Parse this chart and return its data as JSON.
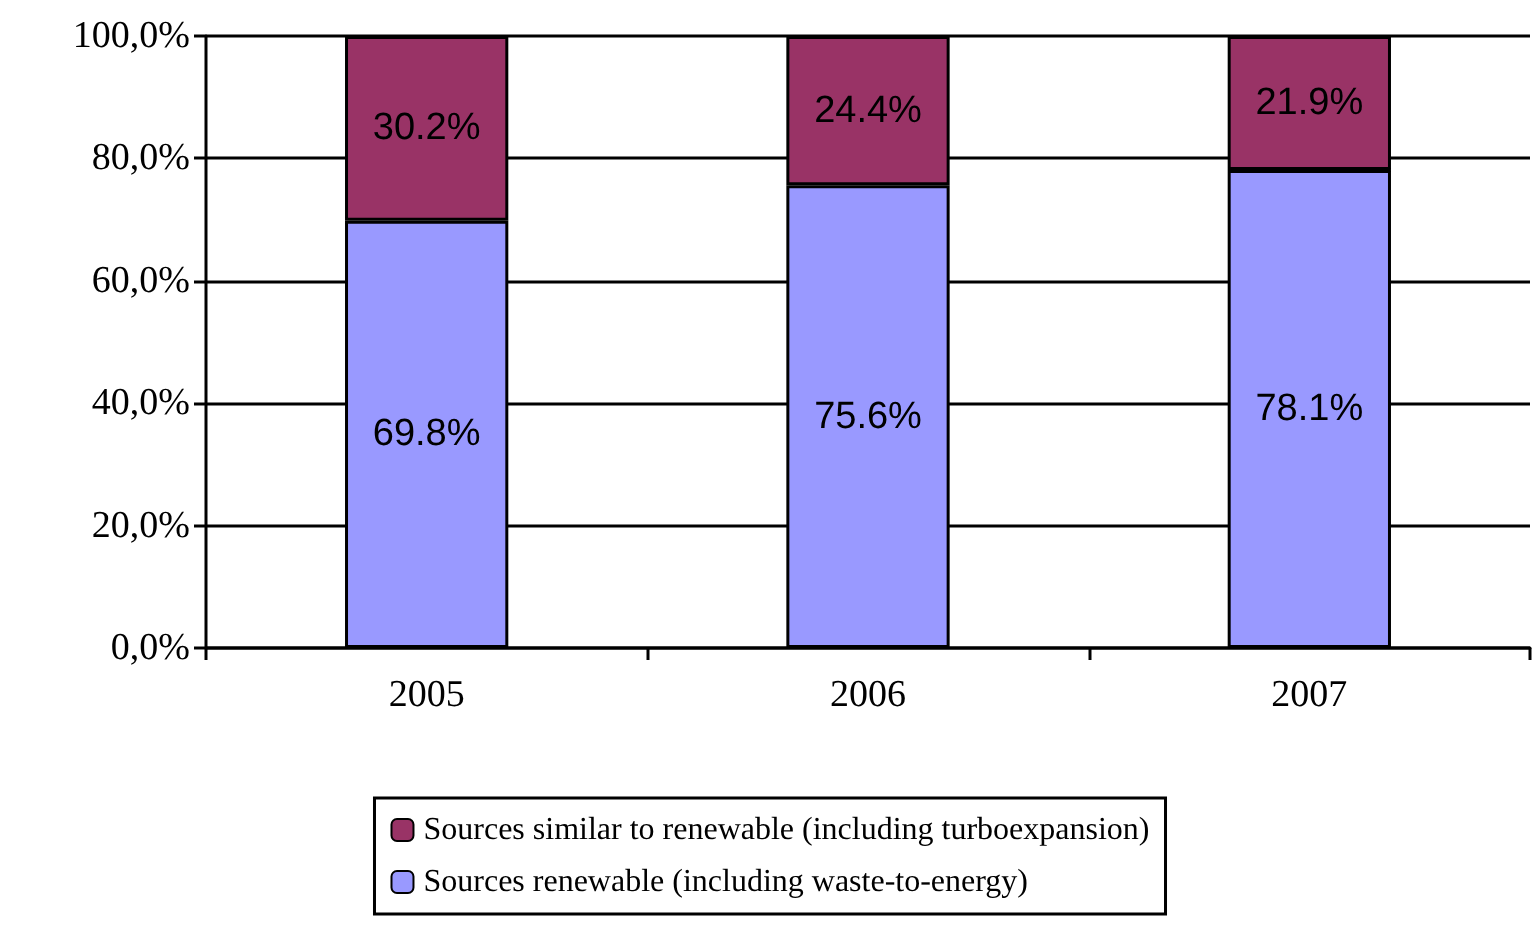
{
  "chart_data": {
    "type": "bar",
    "stacked": true,
    "categories": [
      "2005",
      "2006",
      "2007"
    ],
    "series": [
      {
        "name": "Sources renewable (including waste-to-energy)",
        "color": "#9999ff",
        "values": [
          69.8,
          75.6,
          78.1
        ],
        "value_labels": [
          "69.8%",
          "75.6%",
          "78.1%"
        ]
      },
      {
        "name": "Sources similar to renewable (including turboexpansion)",
        "color": "#993366",
        "values": [
          30.2,
          24.4,
          21.9
        ],
        "value_labels": [
          "30.2%",
          "24.4%",
          "21.9%"
        ]
      }
    ],
    "ylim": [
      0,
      100
    ],
    "yticks": [
      {
        "value": 0,
        "label": "0,0%"
      },
      {
        "value": 20,
        "label": "20,0%"
      },
      {
        "value": 40,
        "label": "40,0%"
      },
      {
        "value": 60,
        "label": "60,0%"
      },
      {
        "value": 80,
        "label": "80,0%"
      },
      {
        "value": 100,
        "label": "100,0%"
      }
    ],
    "grid": "y",
    "legend": "bottom"
  }
}
